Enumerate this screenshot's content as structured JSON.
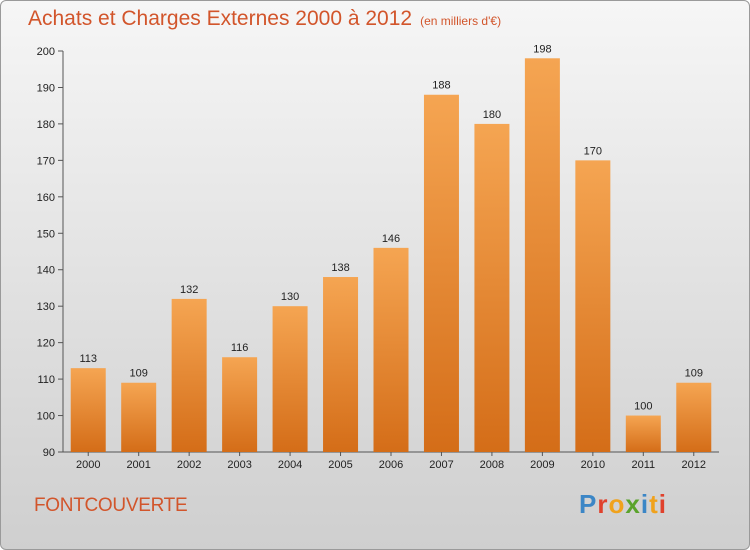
{
  "header": {
    "title": "Achats et Charges Externes 2000 à 2012",
    "unit": "(en milliers d'€)"
  },
  "footer": {
    "commune": "FONTCOUVERTE",
    "logo": [
      "P",
      "r",
      "o",
      "x",
      "i",
      "t",
      "i"
    ]
  },
  "colors": {
    "bar_top": "#f5a552",
    "bar_bottom": "#d46d18",
    "title": "#d2552b"
  },
  "chart_data": {
    "type": "bar",
    "title": "Achats et Charges Externes 2000 à 2012",
    "xlabel": "",
    "ylabel": "",
    "categories": [
      "2000",
      "2001",
      "2002",
      "2003",
      "2004",
      "2005",
      "2006",
      "2007",
      "2008",
      "2009",
      "2010",
      "2011",
      "2012"
    ],
    "values": [
      113,
      109,
      132,
      116,
      130,
      138,
      146,
      188,
      180,
      198,
      170,
      100,
      109
    ],
    "ylim": [
      90,
      200
    ],
    "yticks": [
      90,
      100,
      110,
      120,
      130,
      140,
      150,
      160,
      170,
      180,
      190,
      200
    ],
    "grid": false,
    "data_labels": true
  }
}
